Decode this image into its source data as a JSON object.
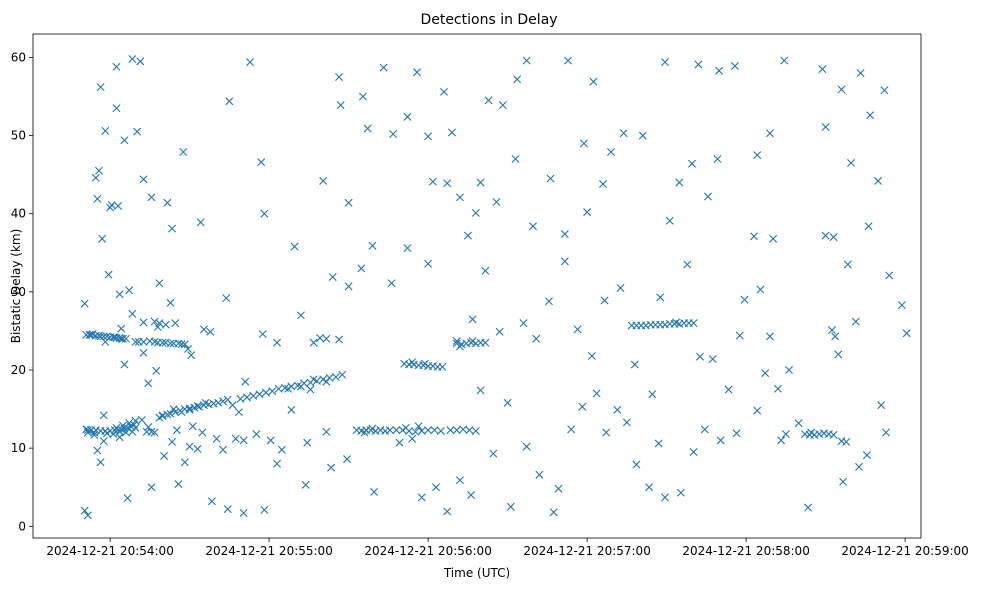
{
  "chart_data": {
    "type": "scatter",
    "title": "Detections in Delay",
    "xlabel": "Time (UTC)",
    "ylabel": "Bistatic Delay (km)",
    "marker": "x",
    "color": "#1f77b4",
    "xlim_minutes": [
      -0.485,
      5.1
    ],
    "ylim": [
      -1.5,
      63
    ],
    "x_ticks": [
      {
        "value": 0,
        "label": "2024-12-21 20:54:00"
      },
      {
        "value": 1,
        "label": "2024-12-21 20:55:00"
      },
      {
        "value": 2,
        "label": "2024-12-21 20:56:00"
      },
      {
        "value": 3,
        "label": "2024-12-21 20:57:00"
      },
      {
        "value": 4,
        "label": "2024-12-21 20:58:00"
      },
      {
        "value": 5,
        "label": "2024-12-21 20:59:00"
      }
    ],
    "y_ticks": [
      {
        "value": 0,
        "label": "0"
      },
      {
        "value": 10,
        "label": "10"
      },
      {
        "value": 20,
        "label": "20"
      },
      {
        "value": 30,
        "label": "30"
      },
      {
        "value": 40,
        "label": "40"
      },
      {
        "value": 50,
        "label": "50"
      },
      {
        "value": 60,
        "label": "60"
      }
    ],
    "x_units": "minutes after 2024-12-21 20:54:00 UTC",
    "points": [
      [
        -0.16,
        2.0
      ],
      [
        -0.14,
        1.4
      ],
      [
        -0.16,
        28.5
      ],
      [
        -0.09,
        44.6
      ],
      [
        -0.06,
        56.2
      ],
      [
        -0.03,
        50.6
      ],
      [
        0.0,
        40.8
      ],
      [
        0.04,
        53.5
      ],
      [
        0.09,
        49.4
      ],
      [
        0.04,
        58.8
      ],
      [
        0.14,
        59.8
      ],
      [
        0.19,
        59.5
      ],
      [
        0.17,
        50.5
      ],
      [
        0.21,
        44.4
      ],
      [
        0.12,
        30.2
      ],
      [
        0.26,
        42.1
      ],
      [
        0.31,
        31.1
      ],
      [
        0.36,
        41.4
      ],
      [
        0.39,
        38.1
      ],
      [
        0.46,
        47.9
      ],
      [
        0.57,
        38.9
      ],
      [
        0.73,
        29.2
      ],
      [
        0.75,
        54.4
      ],
      [
        0.88,
        59.4
      ],
      [
        0.95,
        46.6
      ],
      [
        0.97,
        40.0
      ],
      [
        0.77,
        15.5
      ],
      [
        0.85,
        18.5
      ],
      [
        -0.14,
        12.3
      ],
      [
        -0.08,
        9.7
      ],
      [
        -0.06,
        8.2
      ],
      [
        -0.04,
        10.9
      ],
      [
        0.11,
        3.6
      ],
      [
        0.26,
        5.0
      ],
      [
        0.34,
        9.0
      ],
      [
        0.43,
        5.4
      ],
      [
        0.55,
        9.9
      ],
      [
        0.64,
        3.2
      ],
      [
        0.74,
        2.2
      ],
      [
        0.84,
        1.7
      ],
      [
        0.97,
        2.1
      ],
      [
        1.05,
        8.0
      ],
      [
        1.23,
        5.3
      ],
      [
        1.36,
        12.1
      ],
      [
        1.26,
        17.5
      ],
      [
        1.2,
        27.0
      ],
      [
        1.32,
        24.1
      ],
      [
        1.34,
        44.2
      ],
      [
        1.4,
        31.9
      ],
      [
        1.45,
        53.9
      ],
      [
        1.5,
        41.4
      ],
      [
        1.44,
        57.5
      ],
      [
        1.59,
        55.0
      ],
      [
        1.62,
        50.9
      ],
      [
        1.72,
        58.7
      ],
      [
        1.78,
        50.2
      ],
      [
        1.87,
        52.4
      ],
      [
        1.93,
        58.1
      ],
      [
        2.0,
        49.9
      ],
      [
        2.03,
        44.1
      ],
      [
        2.1,
        55.6
      ],
      [
        2.15,
        50.4
      ],
      [
        2.2,
        42.1
      ],
      [
        2.3,
        40.1
      ],
      [
        2.38,
        54.5
      ],
      [
        2.47,
        53.9
      ],
      [
        2.56,
        57.2
      ],
      [
        2.62,
        59.6
      ],
      [
        2.88,
        59.6
      ],
      [
        2.98,
        49.0
      ],
      [
        3.04,
        56.9
      ],
      [
        3.23,
        50.3
      ],
      [
        3.35,
        50.0
      ],
      [
        3.49,
        59.4
      ],
      [
        3.7,
        59.1
      ],
      [
        3.83,
        58.3
      ],
      [
        3.93,
        58.9
      ],
      [
        4.07,
        47.5
      ],
      [
        4.15,
        50.3
      ],
      [
        4.24,
        59.6
      ],
      [
        4.48,
        58.5
      ],
      [
        4.6,
        55.9
      ],
      [
        4.72,
        58.0
      ],
      [
        4.87,
        55.8
      ],
      [
        4.5,
        51.1
      ],
      [
        4.66,
        46.5
      ],
      [
        4.78,
        52.6
      ],
      [
        4.83,
        44.2
      ],
      [
        4.77,
        38.4
      ],
      [
        4.64,
        33.5
      ],
      [
        4.69,
        26.2
      ],
      [
        4.9,
        32.1
      ],
      [
        4.98,
        28.3
      ],
      [
        5.01,
        24.7
      ],
      [
        4.85,
        15.5
      ],
      [
        4.88,
        12.0
      ],
      [
        4.76,
        9.1
      ],
      [
        4.71,
        7.6
      ],
      [
        4.61,
        5.7
      ],
      [
        4.39,
        2.4
      ],
      [
        4.22,
        11.0
      ],
      [
        4.33,
        13.2
      ],
      [
        4.2,
        17.6
      ],
      [
        4.07,
        14.8
      ],
      [
        3.96,
        24.4
      ],
      [
        3.99,
        29.0
      ],
      [
        4.09,
        30.3
      ],
      [
        4.05,
        37.1
      ],
      [
        4.17,
        36.8
      ],
      [
        4.27,
        20.0
      ],
      [
        3.84,
        11.0
      ],
      [
        3.74,
        12.4
      ],
      [
        3.67,
        9.5
      ],
      [
        3.59,
        4.3
      ],
      [
        3.49,
        3.7
      ],
      [
        3.39,
        5.0
      ],
      [
        3.31,
        7.9
      ],
      [
        3.25,
        13.3
      ],
      [
        3.19,
        14.9
      ],
      [
        3.12,
        12.0
      ],
      [
        3.06,
        17.0
      ],
      [
        2.97,
        15.3
      ],
      [
        2.9,
        12.4
      ],
      [
        2.82,
        4.8
      ],
      [
        2.79,
        1.8
      ],
      [
        2.7,
        6.6
      ],
      [
        2.62,
        10.2
      ],
      [
        2.52,
        2.5
      ],
      [
        2.41,
        9.3
      ],
      [
        2.33,
        17.4
      ],
      [
        2.27,
        4.0
      ],
      [
        2.2,
        5.9
      ],
      [
        2.12,
        1.9
      ],
      [
        2.05,
        5.0
      ],
      [
        1.96,
        3.7
      ],
      [
        1.9,
        11.2
      ],
      [
        1.82,
        10.7
      ],
      [
        1.66,
        4.4
      ],
      [
        1.49,
        8.6
      ],
      [
        1.39,
        7.5
      ],
      [
        1.24,
        10.7
      ],
      [
        1.14,
        14.9
      ],
      [
        1.08,
        9.8
      ],
      [
        1.01,
        11.0
      ],
      [
        2.18,
        23.7
      ],
      [
        2.28,
        26.5
      ],
      [
        2.36,
        32.7
      ],
      [
        2.45,
        24.9
      ],
      [
        2.5,
        15.8
      ],
      [
        2.6,
        26.0
      ],
      [
        2.68,
        24.0
      ],
      [
        2.76,
        28.8
      ],
      [
        2.86,
        33.9
      ],
      [
        2.94,
        25.2
      ],
      [
        3.03,
        21.8
      ],
      [
        3.11,
        28.9
      ],
      [
        3.21,
        30.5
      ],
      [
        3.3,
        20.7
      ],
      [
        3.41,
        16.9
      ],
      [
        3.46,
        29.3
      ],
      [
        3.56,
        26.1
      ],
      [
        3.63,
        33.5
      ],
      [
        3.71,
        21.7
      ],
      [
        3.79,
        21.4
      ],
      [
        3.89,
        17.5
      ],
      [
        3.94,
        11.9
      ],
      [
        4.12,
        19.6
      ],
      [
        4.15,
        24.3
      ],
      [
        4.25,
        11.8
      ],
      [
        3.45,
        10.6
      ],
      [
        3.52,
        39.1
      ],
      [
        3.58,
        44.0
      ],
      [
        3.66,
        46.4
      ],
      [
        3.76,
        42.2
      ],
      [
        3.82,
        47.0
      ],
      [
        3.1,
        43.8
      ],
      [
        3.15,
        47.9
      ],
      [
        3.0,
        40.2
      ],
      [
        2.86,
        37.4
      ],
      [
        2.77,
        44.5
      ],
      [
        2.66,
        38.4
      ],
      [
        2.55,
        47.0
      ],
      [
        2.43,
        41.5
      ],
      [
        2.33,
        44.0
      ],
      [
        2.25,
        37.2
      ],
      [
        2.12,
        43.9
      ],
      [
        2.0,
        33.6
      ],
      [
        1.87,
        35.6
      ],
      [
        1.77,
        31.1
      ],
      [
        1.65,
        35.9
      ],
      [
        1.58,
        33.0
      ],
      [
        1.5,
        30.7
      ],
      [
        1.44,
        23.9
      ],
      [
        1.36,
        24.0
      ],
      [
        1.28,
        23.5
      ],
      [
        1.16,
        35.8
      ],
      [
        1.05,
        23.5
      ],
      [
        0.96,
        24.6
      ],
      [
        0.84,
        11.0
      ],
      [
        0.92,
        11.8
      ],
      [
        0.52,
        12.8
      ],
      [
        0.47,
        8.2
      ],
      [
        0.42,
        12.3
      ],
      [
        0.33,
        14.1
      ],
      [
        0.29,
        19.9
      ],
      [
        0.24,
        18.3
      ],
      [
        0.21,
        22.2
      ],
      [
        0.16,
        23.6
      ],
      [
        0.14,
        27.2
      ],
      [
        -0.1,
        11.7
      ],
      [
        -0.04,
        14.2
      ],
      [
        0.06,
        11.4
      ],
      [
        0.16,
        13.5
      ],
      [
        0.24,
        12.7
      ],
      [
        0.39,
        10.8
      ],
      [
        0.5,
        10.2
      ],
      [
        0.58,
        12.0
      ],
      [
        0.67,
        11.2
      ],
      [
        0.71,
        9.8
      ],
      [
        0.79,
        11.2
      ],
      [
        0.81,
        14.6
      ],
      [
        0.3,
        25.5
      ],
      [
        0.38,
        28.6
      ],
      [
        0.51,
        21.9
      ],
      [
        0.59,
        25.2
      ],
      [
        0.63,
        24.9
      ],
      [
        0.41,
        26.0
      ],
      [
        0.49,
        22.7
      ],
      [
        0.28,
        26.2
      ],
      [
        0.21,
        26.1
      ],
      [
        0.07,
        25.3
      ],
      [
        0.06,
        29.7
      ],
      [
        0.09,
        20.7
      ],
      [
        -0.01,
        32.2
      ],
      [
        -0.05,
        36.8
      ],
      [
        -0.08,
        41.9
      ],
      [
        -0.07,
        45.5
      ],
      [
        0.05,
        41.0
      ],
      [
        0.01,
        41.1
      ],
      [
        -0.15,
        24.5
      ],
      [
        -0.12,
        24.5
      ],
      [
        -0.09,
        24.4
      ],
      [
        -0.07,
        24.4
      ],
      [
        -0.04,
        24.3
      ],
      [
        -0.02,
        24.3
      ],
      [
        0.0,
        24.2
      ],
      [
        0.02,
        24.2
      ],
      [
        0.04,
        24.1
      ],
      [
        0.06,
        24.1
      ],
      [
        0.08,
        24.0
      ],
      [
        -0.13,
        24.5
      ],
      [
        -0.11,
        24.6
      ],
      [
        -0.06,
        24.3
      ],
      [
        0.03,
        24.2
      ],
      [
        0.07,
        24.0
      ],
      [
        0.1,
        24.0
      ],
      [
        -0.03,
        23.6
      ],
      [
        0.18,
        23.6
      ],
      [
        0.21,
        23.6
      ],
      [
        0.25,
        23.7
      ],
      [
        0.28,
        23.6
      ],
      [
        0.3,
        23.5
      ],
      [
        0.33,
        23.5
      ],
      [
        0.35,
        23.5
      ],
      [
        0.38,
        23.4
      ],
      [
        0.4,
        23.4
      ],
      [
        0.43,
        23.4
      ],
      [
        0.45,
        23.3
      ],
      [
        0.47,
        23.3
      ],
      [
        0.31,
        26.0
      ],
      [
        0.35,
        25.8
      ],
      [
        -0.15,
        12.4
      ],
      [
        -0.12,
        12.3
      ],
      [
        -0.09,
        12.3
      ],
      [
        -0.06,
        12.2
      ],
      [
        -0.03,
        12.2
      ],
      [
        0.0,
        12.2
      ],
      [
        0.03,
        12.3
      ],
      [
        0.05,
        12.3
      ],
      [
        0.07,
        12.4
      ],
      [
        0.09,
        12.5
      ],
      [
        0.11,
        12.6
      ],
      [
        0.13,
        12.8
      ],
      [
        0.15,
        13.0
      ],
      [
        -0.14,
        12.0
      ],
      [
        -0.1,
        12.0
      ],
      [
        -0.02,
        11.9
      ],
      [
        0.02,
        11.8
      ],
      [
        0.06,
        12.1
      ],
      [
        0.1,
        12.0
      ],
      [
        0.12,
        13.2
      ],
      [
        0.14,
        12.1
      ],
      [
        0.04,
        12.6
      ],
      [
        0.08,
        12.9
      ],
      [
        0.16,
        12.6
      ],
      [
        0.2,
        13.6
      ],
      [
        0.23,
        12.1
      ],
      [
        0.26,
        12.1
      ],
      [
        0.28,
        12.0
      ],
      [
        0.31,
        13.9
      ],
      [
        0.33,
        14.2
      ],
      [
        0.36,
        14.3
      ],
      [
        0.38,
        14.4
      ],
      [
        0.41,
        14.6
      ],
      [
        0.44,
        14.8
      ],
      [
        0.47,
        15.0
      ],
      [
        0.5,
        15.1
      ],
      [
        0.53,
        15.2
      ],
      [
        0.56,
        15.3
      ],
      [
        0.59,
        15.5
      ],
      [
        0.62,
        15.6
      ],
      [
        0.65,
        15.7
      ],
      [
        0.68,
        15.8
      ],
      [
        0.71,
        16.0
      ],
      [
        0.74,
        16.2
      ],
      [
        0.4,
        15.0
      ],
      [
        0.45,
        14.6
      ],
      [
        0.5,
        14.9
      ],
      [
        0.55,
        15.4
      ],
      [
        0.6,
        15.8
      ],
      [
        0.82,
        16.3
      ],
      [
        0.86,
        16.5
      ],
      [
        0.9,
        16.7
      ],
      [
        0.94,
        16.9
      ],
      [
        0.98,
        17.1
      ],
      [
        1.02,
        17.3
      ],
      [
        1.06,
        17.6
      ],
      [
        1.1,
        17.7
      ],
      [
        1.14,
        17.9
      ],
      [
        1.18,
        18.0
      ],
      [
        1.22,
        18.3
      ],
      [
        1.26,
        18.4
      ],
      [
        1.3,
        18.6
      ],
      [
        1.34,
        18.8
      ],
      [
        1.38,
        19.0
      ],
      [
        1.42,
        19.1
      ],
      [
        1.46,
        19.4
      ],
      [
        1.12,
        17.6
      ],
      [
        1.2,
        17.9
      ],
      [
        1.28,
        18.8
      ],
      [
        1.36,
        18.5
      ],
      [
        1.55,
        12.3
      ],
      [
        1.58,
        12.2
      ],
      [
        1.61,
        12.3
      ],
      [
        1.64,
        12.3
      ],
      [
        1.67,
        12.2
      ],
      [
        1.7,
        12.3
      ],
      [
        1.73,
        12.2
      ],
      [
        1.76,
        12.3
      ],
      [
        1.8,
        12.3
      ],
      [
        1.84,
        12.3
      ],
      [
        1.88,
        12.2
      ],
      [
        1.92,
        12.1
      ],
      [
        1.96,
        12.2
      ],
      [
        2.0,
        12.3
      ],
      [
        2.04,
        12.3
      ],
      [
        2.08,
        12.2
      ],
      [
        2.14,
        12.3
      ],
      [
        2.18,
        12.3
      ],
      [
        2.22,
        12.4
      ],
      [
        2.26,
        12.3
      ],
      [
        2.3,
        12.2
      ],
      [
        1.6,
        12.0
      ],
      [
        1.65,
        12.5
      ],
      [
        1.86,
        12.6
      ],
      [
        1.94,
        12.8
      ],
      [
        1.85,
        20.8
      ],
      [
        1.88,
        20.7
      ],
      [
        1.91,
        20.7
      ],
      [
        1.94,
        20.6
      ],
      [
        1.97,
        20.6
      ],
      [
        2.0,
        20.5
      ],
      [
        2.03,
        20.5
      ],
      [
        2.06,
        20.4
      ],
      [
        2.09,
        20.4
      ],
      [
        1.9,
        21.0
      ],
      [
        1.98,
        20.8
      ],
      [
        2.18,
        23.4
      ],
      [
        2.21,
        23.3
      ],
      [
        2.24,
        23.4
      ],
      [
        2.27,
        23.5
      ],
      [
        2.3,
        23.4
      ],
      [
        2.33,
        23.5
      ],
      [
        2.36,
        23.5
      ],
      [
        2.2,
        23.0
      ],
      [
        2.28,
        23.7
      ],
      [
        3.28,
        25.7
      ],
      [
        3.31,
        25.7
      ],
      [
        3.34,
        25.7
      ],
      [
        3.37,
        25.7
      ],
      [
        3.4,
        25.8
      ],
      [
        3.43,
        25.8
      ],
      [
        3.46,
        25.8
      ],
      [
        3.49,
        25.8
      ],
      [
        3.52,
        25.9
      ],
      [
        3.55,
        25.9
      ],
      [
        3.58,
        25.9
      ],
      [
        3.61,
        26.0
      ],
      [
        3.64,
        26.0
      ],
      [
        3.67,
        26.0
      ],
      [
        4.37,
        11.8
      ],
      [
        4.4,
        11.7
      ],
      [
        4.43,
        11.7
      ],
      [
        4.46,
        11.8
      ],
      [
        4.49,
        11.9
      ],
      [
        4.52,
        11.8
      ],
      [
        4.55,
        11.7
      ],
      [
        4.41,
        12.0
      ],
      [
        4.6,
        10.9
      ],
      [
        4.63,
        10.8
      ],
      [
        4.5,
        37.2
      ],
      [
        4.55,
        37.0
      ],
      [
        4.54,
        25.1
      ],
      [
        4.56,
        24.3
      ],
      [
        4.58,
        22.0
      ]
    ]
  }
}
